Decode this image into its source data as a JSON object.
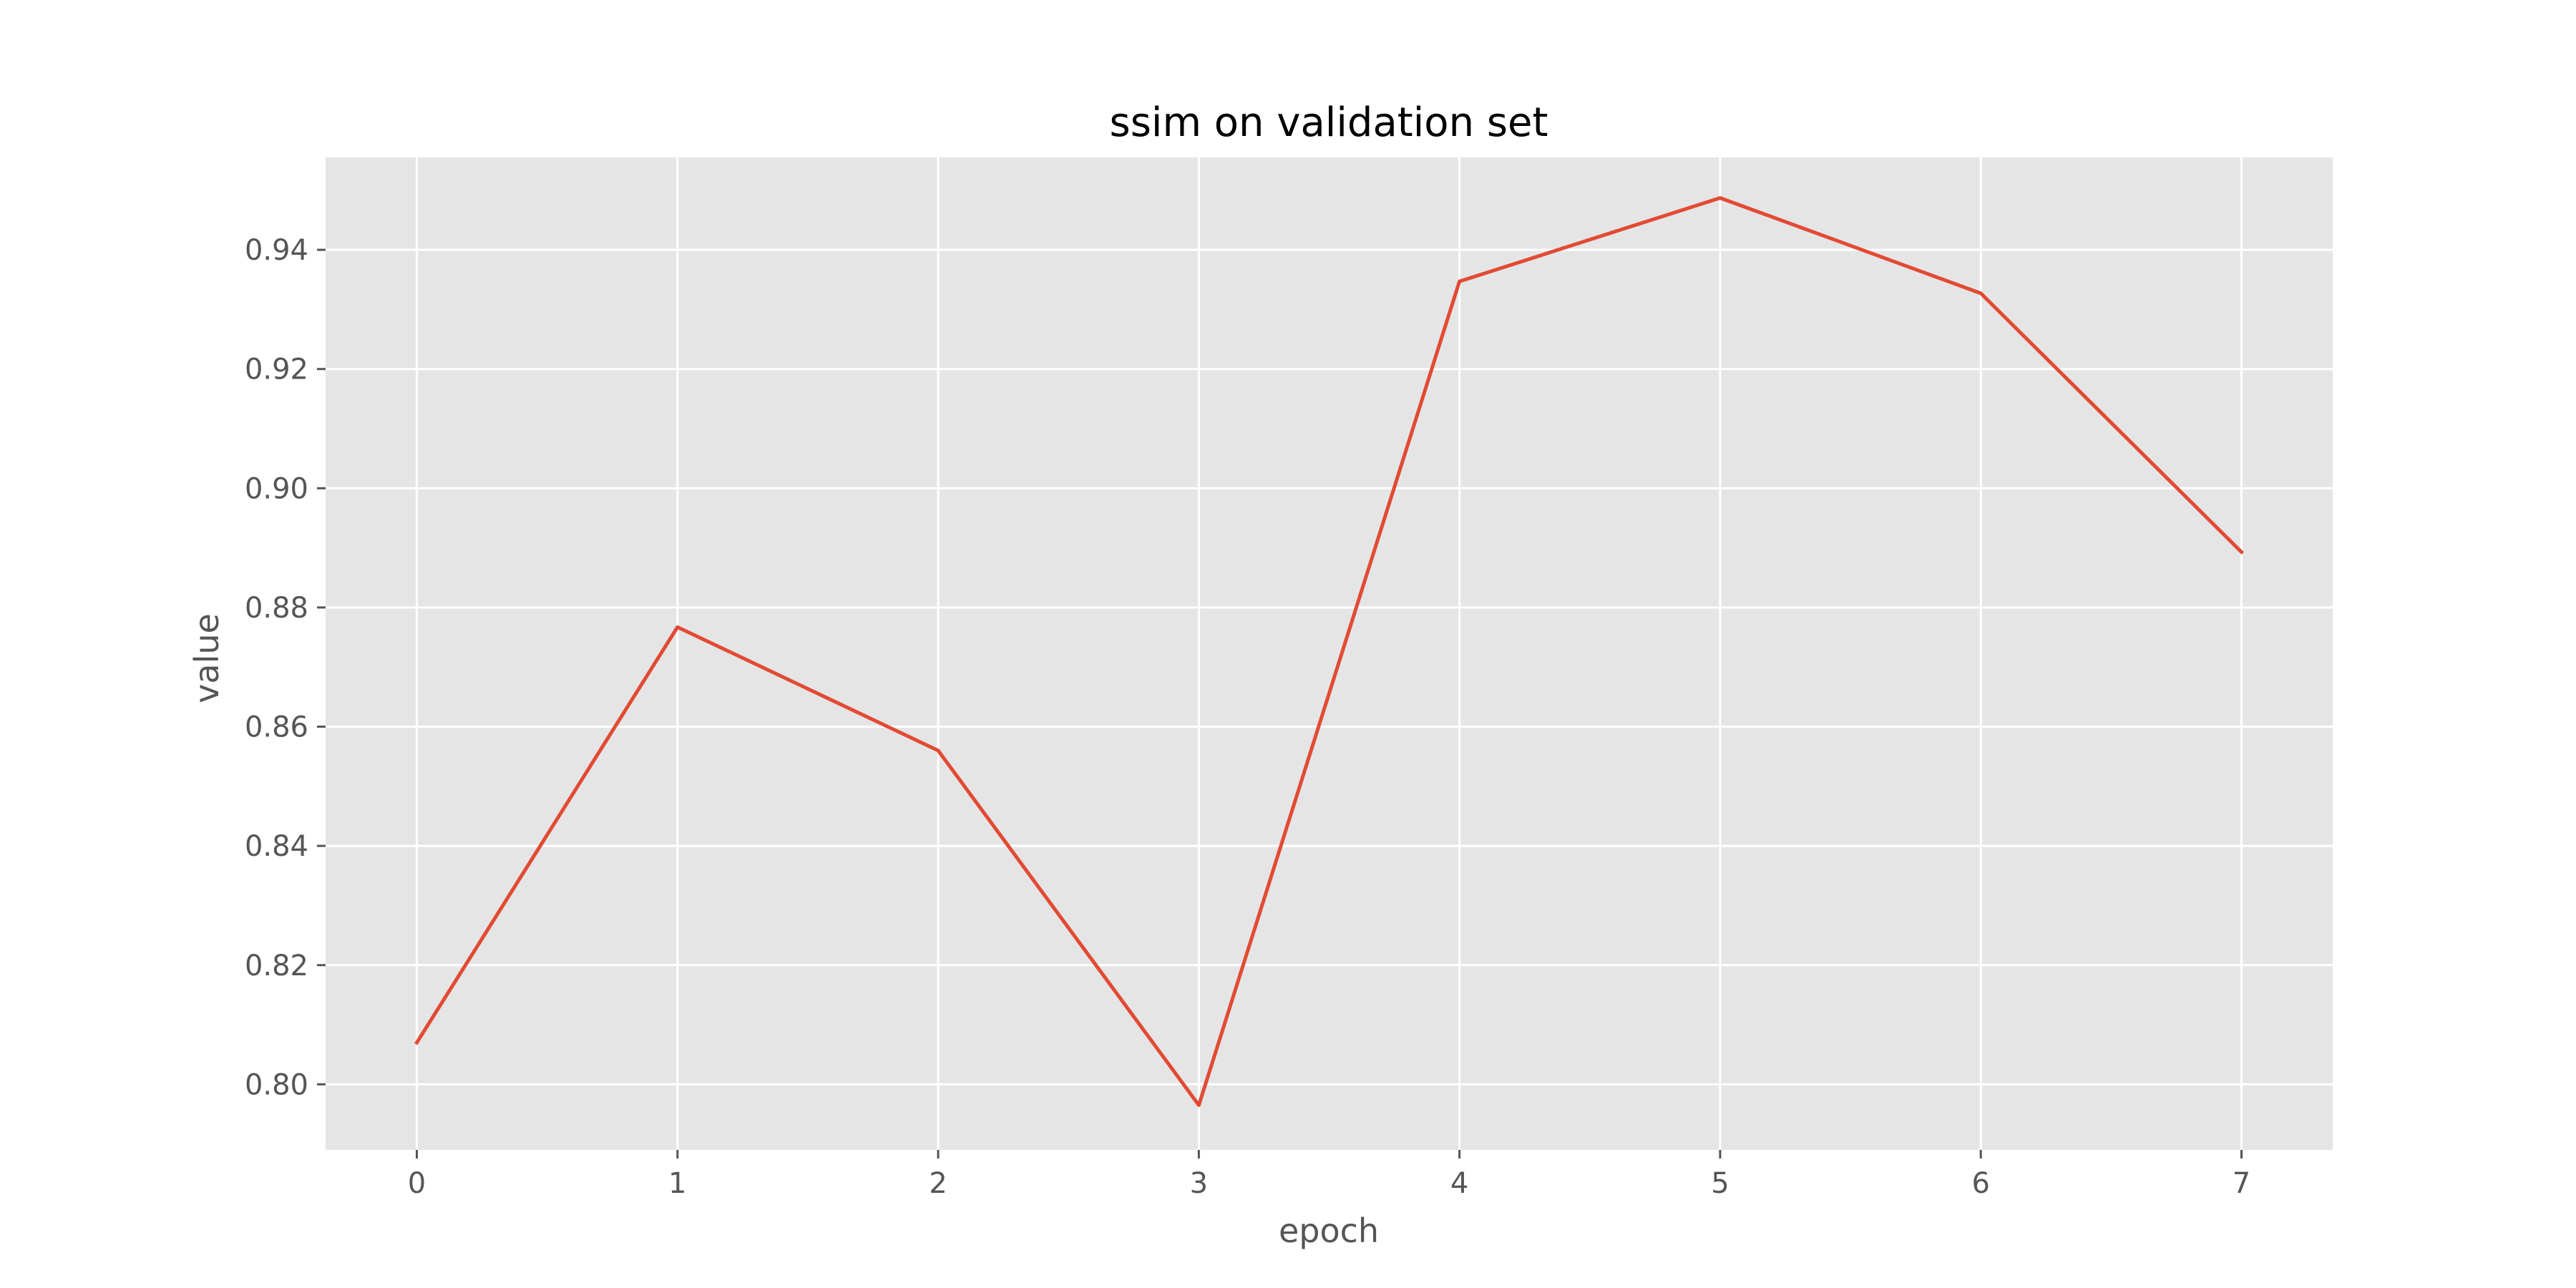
{
  "chart_data": {
    "type": "line",
    "title": "ssim on validation set",
    "xlabel": "epoch",
    "ylabel": "value",
    "x": [
      0,
      1,
      2,
      3,
      4,
      5,
      6,
      7
    ],
    "series": [
      {
        "values": [
          0.807,
          0.8767,
          0.856,
          0.7965,
          0.9347,
          0.9487,
          0.9327,
          0.8893
        ],
        "color": "#E24A33"
      }
    ],
    "xlim": [
      -0.35,
      7.35
    ],
    "ylim": [
      0.789,
      0.9555
    ],
    "xticks": [
      0,
      1,
      2,
      3,
      4,
      5,
      6,
      7
    ],
    "xtick_labels": [
      "0",
      "1",
      "2",
      "3",
      "4",
      "5",
      "6",
      "7"
    ],
    "yticks": [
      0.8,
      0.82,
      0.84,
      0.86,
      0.88,
      0.9,
      0.92,
      0.94
    ],
    "ytick_labels": [
      "0.80",
      "0.82",
      "0.84",
      "0.86",
      "0.88",
      "0.90",
      "0.92",
      "0.94"
    ],
    "grid": true,
    "background_color": "#E5E5E5",
    "grid_color": "#FFFFFF",
    "tick_color": "#555555"
  }
}
